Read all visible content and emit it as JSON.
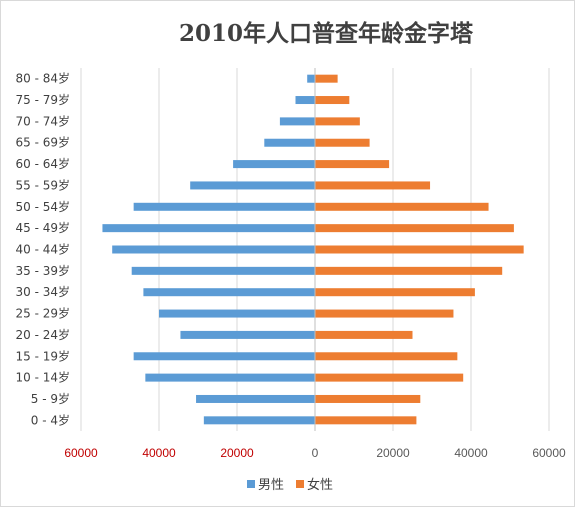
{
  "chart_data": {
    "type": "bar",
    "orientation": "horizontal",
    "title": "2010年人口普查年龄金字塔",
    "categories": [
      "0 - 4岁",
      "5 - 9岁",
      "10 - 14岁",
      "15 - 19岁",
      "20 - 24岁",
      "25 - 29岁",
      "30 - 34岁",
      "35 - 39岁",
      "40 - 44岁",
      "45 - 49岁",
      "50 - 54岁",
      "55 - 59岁",
      "60 - 64岁",
      "65 - 69岁",
      "70 - 74岁",
      "75 - 79岁",
      "80 - 84岁"
    ],
    "series": [
      {
        "name": "男性",
        "color": "#5b9bd5",
        "values": [
          -28500,
          -30500,
          -43500,
          -46500,
          -34500,
          -40000,
          -44000,
          -47000,
          -52000,
          -54500,
          -46500,
          -32000,
          -21000,
          -13000,
          -9000,
          -5000,
          -2000
        ]
      },
      {
        "name": "女性",
        "color": "#ed7d31",
        "values": [
          26000,
          27000,
          38000,
          36500,
          25000,
          35500,
          41000,
          48000,
          53500,
          51000,
          44500,
          29500,
          19000,
          14000,
          11500,
          8800,
          5800
        ]
      }
    ],
    "xlim": [
      -60000,
      60000
    ],
    "xticks": [
      -60000,
      -40000,
      -20000,
      0,
      20000,
      40000,
      60000
    ],
    "xtick_labels": [
      "60000",
      "40000",
      "20000",
      "0",
      "20000",
      "40000",
      "60000"
    ],
    "negative_tick_color": "#c00000",
    "tick_color": "#595959",
    "grid": "vertical",
    "legend_position": "bottom"
  }
}
